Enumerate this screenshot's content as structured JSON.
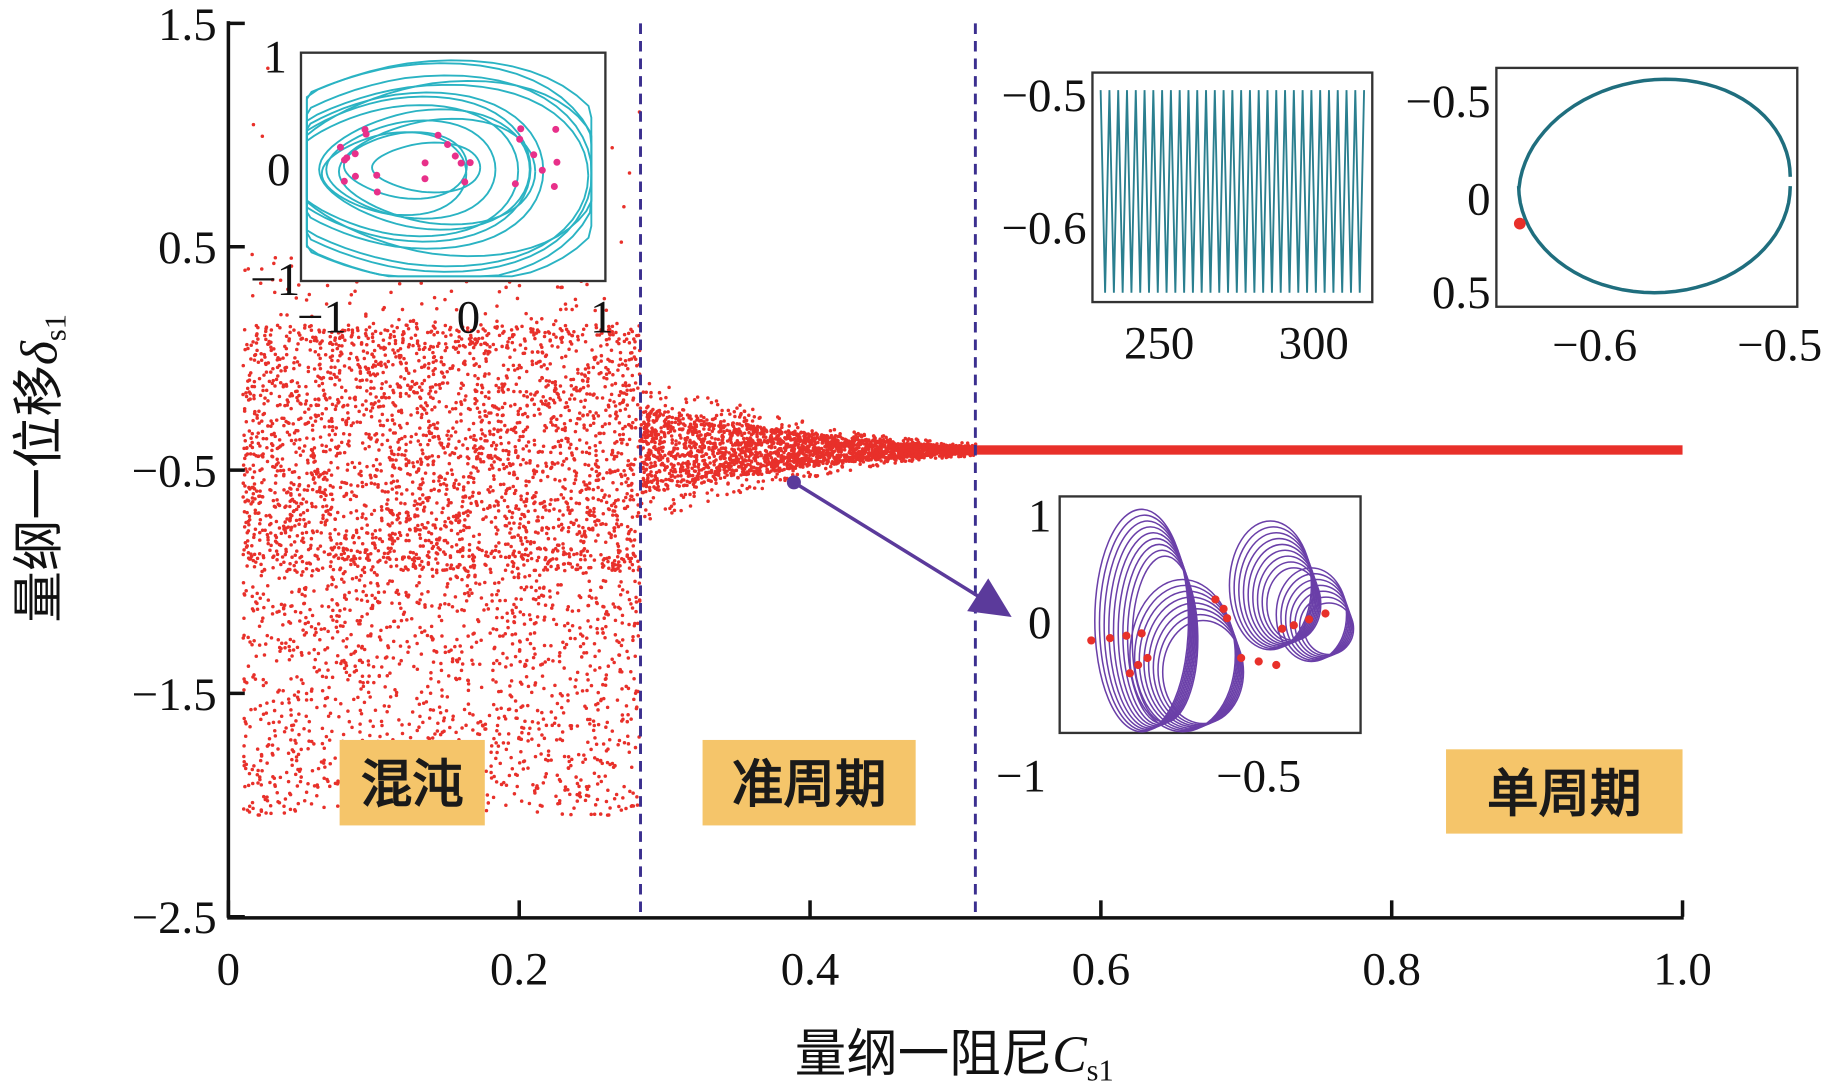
{
  "chart_data": {
    "type": "scatter",
    "title": "",
    "xlabel": "量纲一阻尼",
    "xlabel_symbol": "C",
    "xlabel_sub": "s1",
    "ylabel": "量纲一位移",
    "ylabel_symbol": "δ",
    "ylabel_sub": "s1",
    "xlim": [
      0,
      1.0
    ],
    "ylim": [
      -2.5,
      1.5
    ],
    "xticks": [
      "0",
      "0.2",
      "0.4",
      "0.6",
      "0.8",
      "1.0"
    ],
    "xtick_values": [
      0,
      0.2,
      0.4,
      0.6,
      0.8,
      1.0
    ],
    "yticks": [
      "1.5",
      "0.5",
      "−0.5",
      "−1.5",
      "−2.5"
    ],
    "ytick_values": [
      1.5,
      0.5,
      -0.5,
      -1.5,
      -2.5
    ],
    "grid": false,
    "point_color": "#e8302a",
    "boundaries": [
      0.283,
      0.514
    ],
    "boundary_color": "#3b2f8f",
    "regions": [
      {
        "label": "混沌",
        "x_range": [
          0,
          0.283
        ],
        "y_range": [
          -2.1,
          1.3
        ]
      },
      {
        "label": "准周期",
        "x_range": [
          0.283,
          0.514
        ],
        "center": -0.41,
        "amplitude_start": 0.3,
        "amplitude_end": 0.03
      },
      {
        "label": "单周期",
        "x_range": [
          0.514,
          1.0
        ],
        "value": -0.41
      }
    ],
    "region_label_bg": "#f5c56a",
    "annotation_point": {
      "x": 0.392,
      "y": -0.55,
      "color": "#5b3a9b"
    },
    "insets": [
      {
        "id": "chaos-phase",
        "color": "#2ab3c3",
        "marker_color": "#e8308a",
        "xticks": [
          "−1",
          "0",
          "1"
        ],
        "yticks": [
          "1",
          "0",
          "−1"
        ]
      },
      {
        "id": "time-series",
        "color": "#2a7f8f",
        "xticks": [
          "250",
          "300"
        ],
        "yticks": [
          "−0.5",
          "−0.6"
        ]
      },
      {
        "id": "period1-phase",
        "color": "#1f6e7e",
        "marker_color": "#e8302a",
        "xticks": [
          "−0.6",
          "−0.5"
        ],
        "yticks": [
          "−0.5",
          "0",
          "0.5"
        ]
      },
      {
        "id": "quasi-phase",
        "color": "#6a3fa8",
        "marker_color": "#e8302a",
        "xticks": [
          "−1",
          "−0.5"
        ],
        "yticks": [
          "1",
          "0"
        ]
      }
    ]
  }
}
